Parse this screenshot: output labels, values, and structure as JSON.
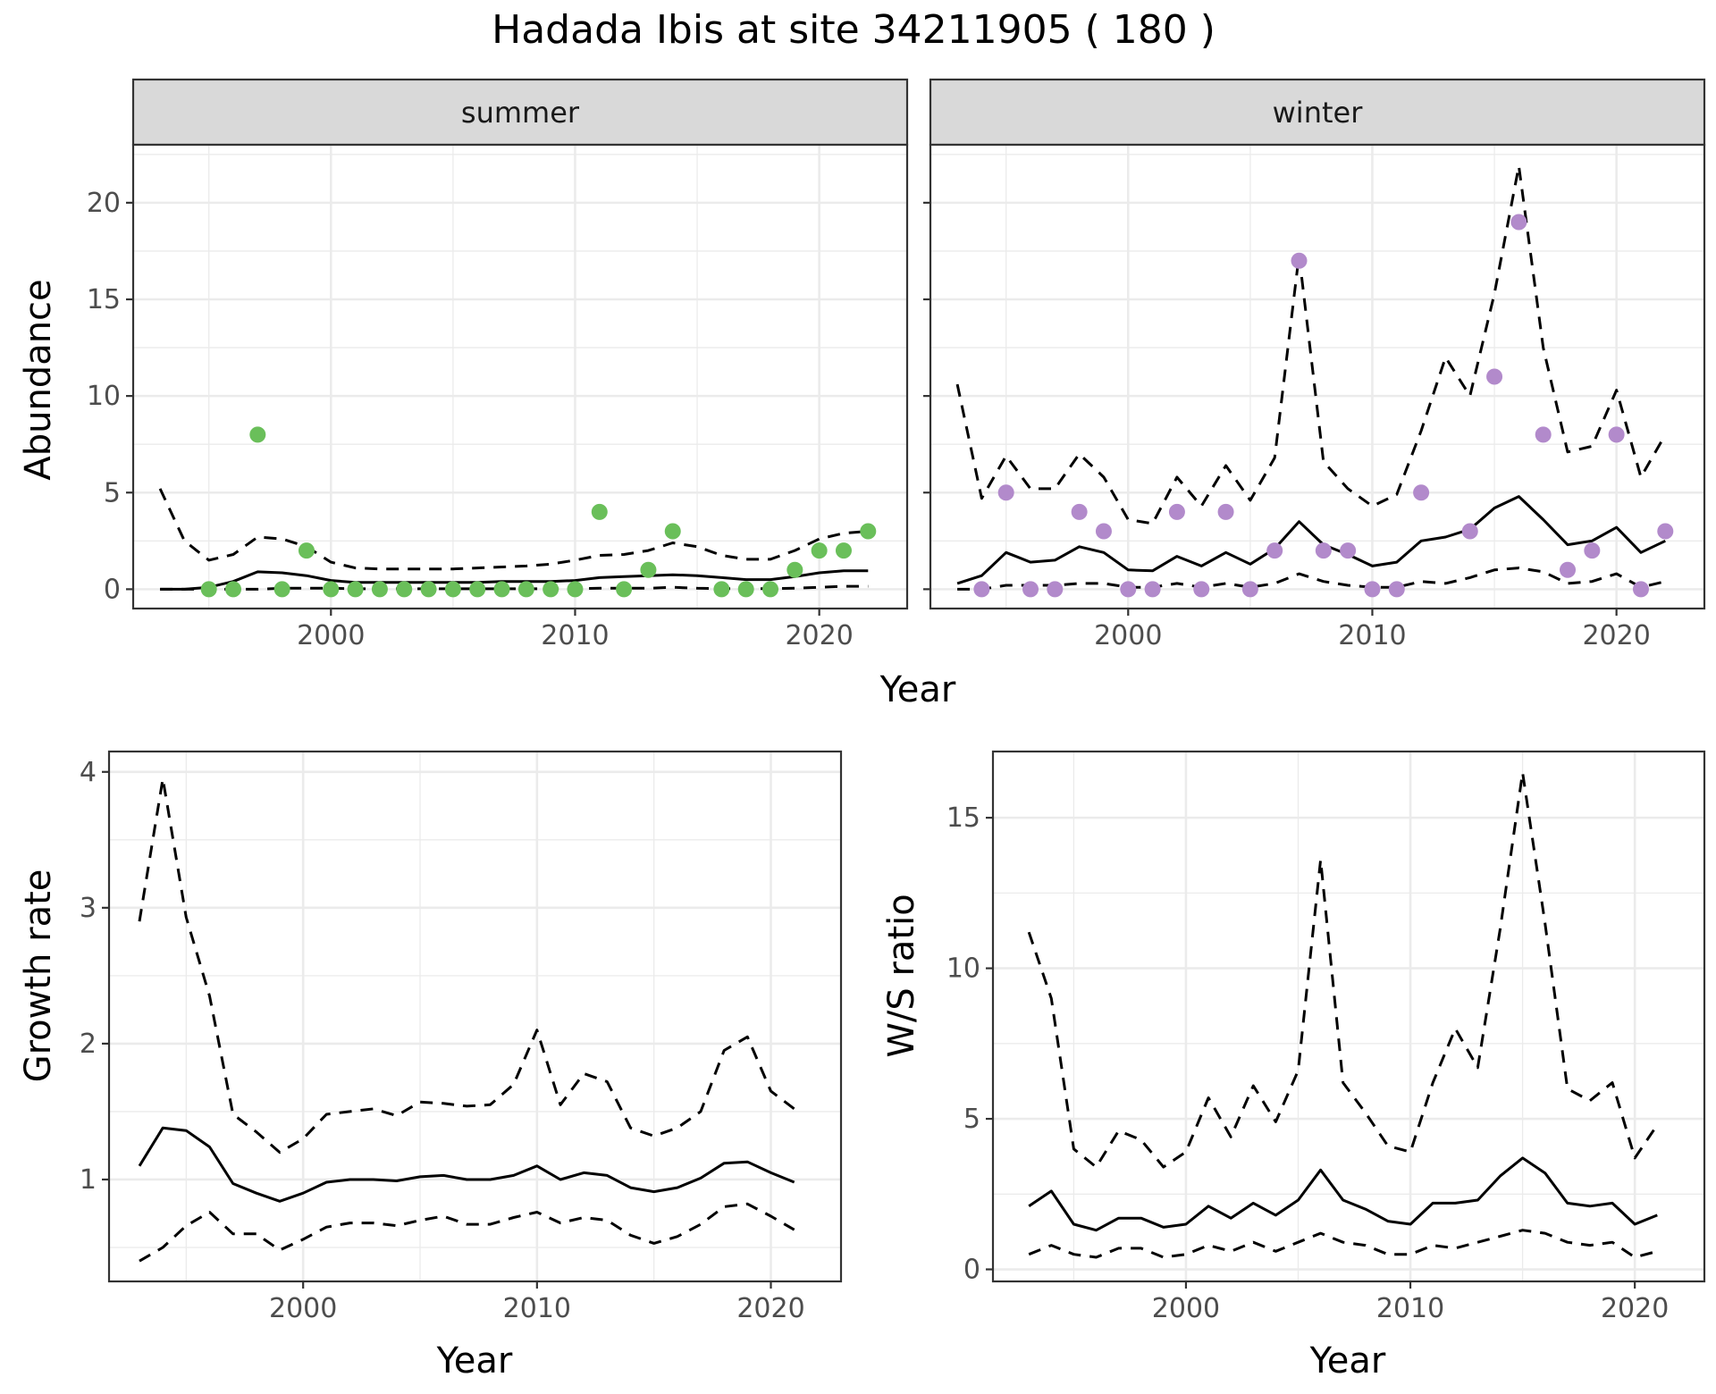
{
  "title": "Hadada Ibis at site 34211905 ( 180 )",
  "colors": {
    "summer_points": "#6ABF5A",
    "winter_points": "#B28ACB",
    "lines": "#000000",
    "strip_fill": "#d9d9d9",
    "grid": "#ebebeb"
  },
  "chart_data": [
    {
      "type": "line",
      "panel": "summer",
      "strip_label": "summer",
      "xlabel": "Year",
      "ylabel": "Abundance",
      "xlim": [
        1991.9,
        2023.6
      ],
      "ylim": [
        -1,
        23
      ],
      "xticks": [
        2000,
        2010,
        2020
      ],
      "yticks": [
        0,
        5,
        10,
        15,
        20
      ],
      "grid": true,
      "x": [
        1993,
        1994,
        1995,
        1996,
        1997,
        1998,
        1999,
        2000,
        2001,
        2002,
        2003,
        2004,
        2005,
        2006,
        2007,
        2008,
        2009,
        2010,
        2011,
        2012,
        2013,
        2014,
        2015,
        2016,
        2017,
        2018,
        2019,
        2020,
        2021,
        2022
      ],
      "series": [
        {
          "role": "mean",
          "style": "solid",
          "values": [
            0,
            0,
            0.1,
            0.4,
            0.9,
            0.85,
            0.7,
            0.45,
            0.35,
            0.35,
            0.35,
            0.35,
            0.35,
            0.35,
            0.4,
            0.4,
            0.4,
            0.45,
            0.6,
            0.65,
            0.7,
            0.75,
            0.7,
            0.6,
            0.5,
            0.5,
            0.65,
            0.85,
            0.95,
            0.95
          ]
        },
        {
          "role": "upper",
          "style": "dashed",
          "values": [
            5.2,
            2.5,
            1.5,
            1.8,
            2.7,
            2.6,
            2.2,
            1.4,
            1.1,
            1.05,
            1.05,
            1.05,
            1.05,
            1.1,
            1.15,
            1.2,
            1.3,
            1.5,
            1.75,
            1.8,
            2.0,
            2.4,
            2.2,
            1.75,
            1.55,
            1.55,
            2.0,
            2.6,
            2.9,
            3.0
          ]
        },
        {
          "role": "lower",
          "style": "dashed",
          "values": [
            0,
            0,
            0,
            0,
            0,
            0.05,
            0.05,
            0.05,
            0.02,
            0.02,
            0.02,
            0.02,
            0.02,
            0.02,
            0.02,
            0.02,
            0.02,
            0.02,
            0.05,
            0.05,
            0.05,
            0.1,
            0.05,
            0.03,
            0.03,
            0.03,
            0.05,
            0.1,
            0.15,
            0.15
          ]
        }
      ],
      "points": {
        "x": [
          1995,
          1996,
          1997,
          1998,
          1999,
          2000,
          2001,
          2002,
          2003,
          2004,
          2005,
          2006,
          2007,
          2008,
          2009,
          2010,
          2011,
          2012,
          2013,
          2014,
          2016,
          2017,
          2018,
          2019,
          2020,
          2021,
          2022
        ],
        "y": [
          0,
          0,
          8,
          0,
          2,
          0,
          0,
          0,
          0,
          0,
          0,
          0,
          0,
          0,
          0,
          0,
          4,
          0,
          1,
          3,
          0,
          0,
          0,
          1,
          2,
          2,
          3
        ]
      }
    },
    {
      "type": "line",
      "panel": "winter",
      "strip_label": "winter",
      "xlabel": "Year",
      "ylabel": "Abundance",
      "xlim": [
        1991.9,
        2023.6
      ],
      "ylim": [
        -1,
        23
      ],
      "xticks": [
        2000,
        2010,
        2020
      ],
      "yticks": [
        0,
        5,
        10,
        15,
        20
      ],
      "grid": true,
      "x": [
        1993,
        1994,
        1995,
        1996,
        1997,
        1998,
        1999,
        2000,
        2001,
        2002,
        2003,
        2004,
        2005,
        2006,
        2007,
        2008,
        2009,
        2010,
        2011,
        2012,
        2013,
        2014,
        2015,
        2016,
        2017,
        2018,
        2019,
        2020,
        2021,
        2022
      ],
      "series": [
        {
          "role": "mean",
          "style": "solid",
          "values": [
            0.3,
            0.7,
            1.9,
            1.4,
            1.5,
            2.2,
            1.9,
            1.0,
            0.95,
            1.7,
            1.2,
            1.9,
            1.3,
            2.1,
            3.5,
            2.3,
            1.8,
            1.2,
            1.4,
            2.5,
            2.7,
            3.1,
            4.2,
            4.8,
            3.6,
            2.3,
            2.5,
            3.2,
            1.9,
            2.5
          ]
        },
        {
          "role": "upper",
          "style": "dashed",
          "values": [
            10.6,
            4.7,
            6.9,
            5.2,
            5.2,
            7.0,
            5.8,
            3.6,
            3.4,
            5.8,
            4.3,
            6.4,
            4.6,
            6.8,
            17.3,
            6.6,
            5.2,
            4.3,
            4.9,
            8.2,
            12.0,
            10.0,
            15.3,
            21.9,
            12.5,
            7.1,
            7.4,
            10.3,
            5.8,
            8.0
          ]
        },
        {
          "role": "lower",
          "style": "dashed",
          "values": [
            0,
            0,
            0.2,
            0.2,
            0.2,
            0.3,
            0.3,
            0.1,
            0.1,
            0.3,
            0.1,
            0.3,
            0.1,
            0.3,
            0.8,
            0.4,
            0.2,
            0.1,
            0.1,
            0.4,
            0.3,
            0.6,
            1.0,
            1.1,
            0.9,
            0.3,
            0.4,
            0.8,
            0.1,
            0.4
          ]
        }
      ],
      "points": {
        "x": [
          1994,
          1995,
          1996,
          1997,
          1998,
          1999,
          2000,
          2001,
          2002,
          2003,
          2004,
          2005,
          2006,
          2007,
          2008,
          2009,
          2010,
          2011,
          2012,
          2014,
          2015,
          2016,
          2017,
          2018,
          2019,
          2020,
          2021,
          2022
        ],
        "y": [
          0,
          5,
          0,
          0,
          4,
          3,
          0,
          0,
          4,
          0,
          4,
          0,
          2,
          17,
          2,
          2,
          0,
          0,
          5,
          3,
          11,
          19,
          8,
          1,
          2,
          8,
          0,
          3
        ]
      }
    },
    {
      "type": "line",
      "panel": "growth",
      "xlabel": "Year",
      "ylabel": "Growth rate",
      "xlim": [
        1991.7,
        2023.0
      ],
      "ylim": [
        0.25,
        4.15
      ],
      "xticks": [
        2000,
        2010,
        2020
      ],
      "yticks": [
        1,
        2,
        3,
        4
      ],
      "grid": true,
      "x": [
        1993,
        1994,
        1995,
        1996,
        1997,
        1998,
        1999,
        2000,
        2001,
        2002,
        2003,
        2004,
        2005,
        2006,
        2007,
        2008,
        2009,
        2010,
        2011,
        2012,
        2013,
        2014,
        2015,
        2016,
        2017,
        2018,
        2019,
        2020,
        2021
      ],
      "series": [
        {
          "role": "mean",
          "style": "solid",
          "values": [
            1.1,
            1.38,
            1.36,
            1.24,
            0.97,
            0.9,
            0.84,
            0.9,
            0.98,
            1.0,
            1.0,
            0.99,
            1.02,
            1.03,
            1.0,
            1.0,
            1.03,
            1.1,
            1.0,
            1.05,
            1.03,
            0.94,
            0.91,
            0.94,
            1.01,
            1.12,
            1.13,
            1.05,
            0.98
          ]
        },
        {
          "role": "upper",
          "style": "dashed",
          "values": [
            2.9,
            3.95,
            2.93,
            2.35,
            1.48,
            1.35,
            1.2,
            1.3,
            1.48,
            1.5,
            1.52,
            1.47,
            1.57,
            1.56,
            1.54,
            1.55,
            1.7,
            2.1,
            1.55,
            1.78,
            1.72,
            1.38,
            1.32,
            1.38,
            1.5,
            1.95,
            2.05,
            1.65,
            1.52
          ]
        },
        {
          "role": "lower",
          "style": "dashed",
          "values": [
            0.4,
            0.5,
            0.66,
            0.76,
            0.6,
            0.6,
            0.48,
            0.56,
            0.65,
            0.68,
            0.68,
            0.66,
            0.7,
            0.73,
            0.67,
            0.67,
            0.72,
            0.76,
            0.68,
            0.72,
            0.7,
            0.59,
            0.53,
            0.58,
            0.67,
            0.8,
            0.82,
            0.73,
            0.63
          ]
        }
      ]
    },
    {
      "type": "line",
      "panel": "ws_ratio",
      "xlabel": "Year",
      "ylabel": "W/S ratio",
      "xlim": [
        1991.4,
        2023.1
      ],
      "ylim": [
        -0.4,
        17.2
      ],
      "xticks": [
        2000,
        2010,
        2020
      ],
      "yticks": [
        0,
        5,
        10,
        15
      ],
      "grid": true,
      "x": [
        1993,
        1994,
        1995,
        1996,
        1997,
        1998,
        1999,
        2000,
        2001,
        2002,
        2003,
        2004,
        2005,
        2006,
        2007,
        2008,
        2009,
        2010,
        2011,
        2012,
        2013,
        2014,
        2015,
        2016,
        2017,
        2018,
        2019,
        2020,
        2021
      ],
      "series": [
        {
          "role": "mean",
          "style": "solid",
          "values": [
            2.1,
            2.6,
            1.5,
            1.3,
            1.7,
            1.7,
            1.4,
            1.5,
            2.1,
            1.7,
            2.2,
            1.8,
            2.3,
            3.3,
            2.3,
            2.0,
            1.6,
            1.5,
            2.2,
            2.2,
            2.3,
            3.1,
            3.7,
            3.2,
            2.2,
            2.1,
            2.2,
            1.5,
            1.8
          ]
        },
        {
          "role": "upper",
          "style": "dashed",
          "values": [
            11.2,
            9.0,
            4.0,
            3.4,
            4.6,
            4.3,
            3.4,
            3.9,
            5.7,
            4.4,
            6.1,
            4.9,
            6.6,
            13.6,
            6.2,
            5.2,
            4.1,
            3.9,
            6.2,
            8.0,
            6.7,
            11.3,
            16.5,
            11.5,
            6.0,
            5.6,
            6.2,
            3.7,
            4.8
          ]
        },
        {
          "role": "lower",
          "style": "dashed",
          "values": [
            0.5,
            0.8,
            0.5,
            0.4,
            0.7,
            0.7,
            0.4,
            0.5,
            0.8,
            0.6,
            0.9,
            0.6,
            0.9,
            1.2,
            0.9,
            0.8,
            0.5,
            0.5,
            0.8,
            0.7,
            0.9,
            1.1,
            1.3,
            1.2,
            0.9,
            0.8,
            0.9,
            0.4,
            0.6
          ]
        }
      ]
    }
  ]
}
